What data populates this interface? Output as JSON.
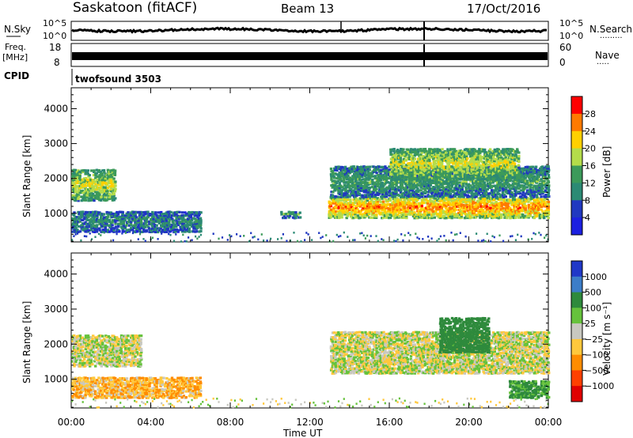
{
  "header": {
    "station": "Saskatoon (fitACF)",
    "beam": "Beam 13",
    "date": "17/Oct/2016"
  },
  "top_panels": {
    "nsky_label": "N.Sky",
    "nsearch_label": "N.Search",
    "nsearch_dots": "·········",
    "noise_ticks": [
      "10^5",
      "10^0"
    ],
    "freq_label_top": "Freq.",
    "freq_label_bottom": "[MHz]",
    "freq_ticks": [
      "18",
      "8"
    ],
    "nave_label": "Nave",
    "nave_dots": "·····",
    "nave_ticks": [
      "60",
      "0"
    ],
    "cpid_label": "CPID",
    "cpid_value": "twofsound 3503"
  },
  "chart_data": [
    {
      "type": "heatmap",
      "parameter": "Power",
      "ylabel": "Slant Range [km]",
      "xlabel": "Time UT",
      "x_ticks": [
        "00:00",
        "04:00",
        "08:00",
        "12:00",
        "16:00",
        "20:00",
        "00:00"
      ],
      "y_ticks": [
        "1000",
        "2000",
        "3000",
        "4000"
      ],
      "ylim": [
        180,
        4600
      ],
      "xlim_hours": [
        0,
        24
      ],
      "colorbar": {
        "label": "Power [dB]",
        "ticks": [
          "28",
          "24",
          "20",
          "16",
          "12",
          "8",
          "4"
        ],
        "colors": [
          "#ff0000",
          "#ff7a00",
          "#ffd000",
          "#b4dc4a",
          "#3c9a5a",
          "#2c8a74",
          "#2038c0",
          "#1c20e0"
        ]
      },
      "scatter_regions": [
        {
          "t0": 0.0,
          "t1": 2.2,
          "r0": 1400,
          "r1": 2300,
          "power": 18
        },
        {
          "t0": 0.0,
          "t1": 6.5,
          "r0": 500,
          "r1": 1100,
          "power": 10
        },
        {
          "t0": 12.9,
          "t1": 24.0,
          "r0": 900,
          "r1": 1500,
          "power": 24
        },
        {
          "t0": 13.0,
          "t1": 24.0,
          "r0": 1500,
          "r1": 2400,
          "power": 12
        },
        {
          "t0": 16.0,
          "t1": 22.5,
          "r0": 2000,
          "r1": 2900,
          "power": 18
        },
        {
          "t0": 10.5,
          "t1": 11.5,
          "r0": 900,
          "r1": 1100,
          "power": 12
        }
      ]
    },
    {
      "type": "heatmap",
      "parameter": "Velocity",
      "ylabel": "Slant Range [km]",
      "xlabel": "Time UT",
      "x_ticks": [
        "00:00",
        "04:00",
        "08:00",
        "12:00",
        "16:00",
        "20:00",
        "00:00"
      ],
      "y_ticks": [
        "1000",
        "2000",
        "3000",
        "4000"
      ],
      "ylim": [
        180,
        4600
      ],
      "xlim_hours": [
        0,
        24
      ],
      "colorbar": {
        "label": "Velocity [m s⁻¹]",
        "ticks": [
          "1000",
          "500",
          "100",
          "25",
          "−25",
          "−100",
          "−500",
          "−1000"
        ],
        "colors": [
          "#2038c8",
          "#3c7dc8",
          "#2e8a3c",
          "#66c23c",
          "#c8c8c0",
          "#ffc83c",
          "#ff8c00",
          "#ff4000",
          "#e00000"
        ]
      },
      "scatter_regions": [
        {
          "t0": 0.0,
          "t1": 3.5,
          "r0": 1400,
          "r1": 2300,
          "velocity": 0
        },
        {
          "t0": 0.0,
          "t1": 6.5,
          "r0": 500,
          "r1": 1100,
          "velocity": -80
        },
        {
          "t0": 13.0,
          "t1": 24.0,
          "r0": 1200,
          "r1": 2400,
          "velocity": 0
        },
        {
          "t0": 18.5,
          "t1": 21.0,
          "r0": 1800,
          "r1": 2800,
          "velocity": 400
        },
        {
          "t0": 22.0,
          "t1": 24.0,
          "r0": 500,
          "r1": 1000,
          "velocity": 120
        }
      ]
    }
  ]
}
